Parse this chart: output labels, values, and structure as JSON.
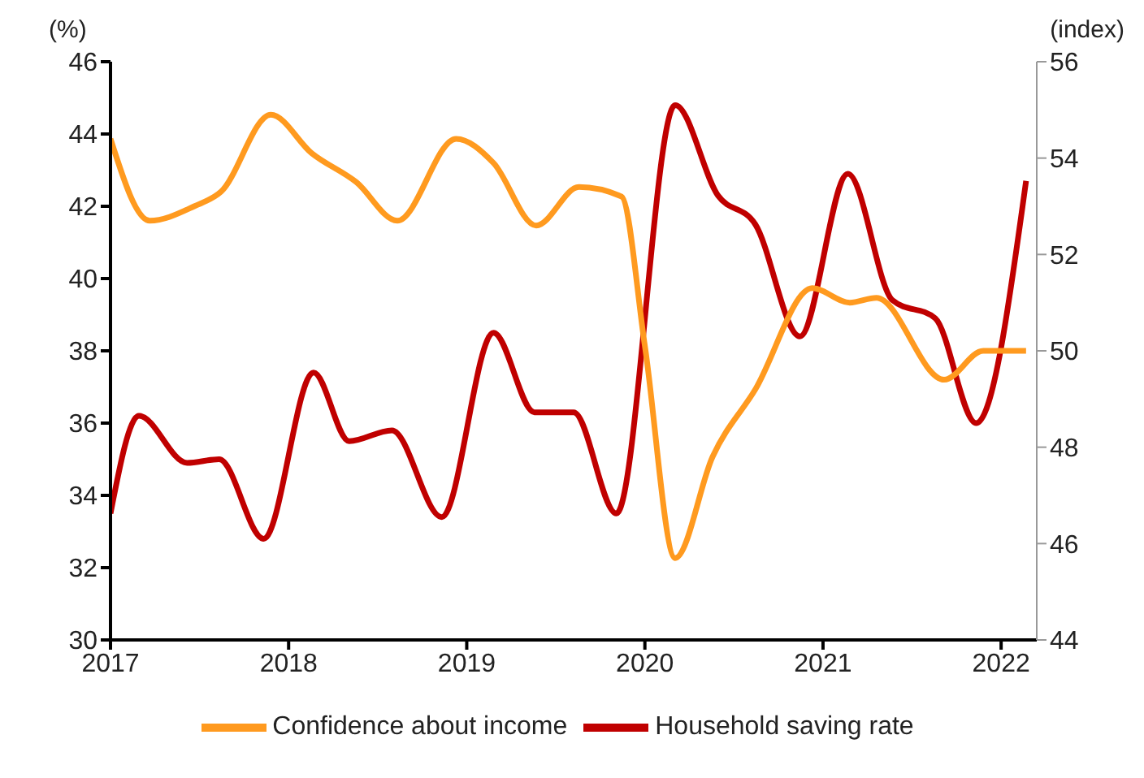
{
  "chart_data": {
    "type": "line",
    "ylabel": "(%)",
    "y2label": "(index)",
    "xlim": [
      2017,
      2022.2
    ],
    "xticks": [
      2017,
      2018,
      2019,
      2020,
      2021,
      2022
    ],
    "ylim": [
      30,
      46
    ],
    "yticks": [
      30,
      32,
      34,
      36,
      38,
      40,
      42,
      44,
      46
    ],
    "y2lim": [
      44,
      56
    ],
    "y2ticks": [
      44,
      46,
      48,
      50,
      52,
      54,
      56
    ],
    "grid": false,
    "legend": "bottom",
    "marker": "none",
    "line_style": "solid",
    "series": [
      {
        "name": "Household saving rate",
        "color": "#c00000",
        "x": [
          2017.0,
          2017.16,
          2017.43,
          2017.61,
          2017.86,
          2018.14,
          2018.34,
          2018.58,
          2018.86,
          2019.15,
          2019.38,
          2019.6,
          2019.84,
          2020.17,
          2020.41,
          2020.62,
          2020.87,
          2021.14,
          2021.39,
          2021.63,
          2021.86,
          2022.14
        ],
        "values": [
          33.5,
          36.2,
          34.9,
          35.0,
          32.8,
          37.4,
          35.5,
          35.8,
          33.4,
          38.5,
          36.3,
          36.3,
          33.5,
          44.8,
          42.3,
          41.5,
          38.4,
          42.9,
          39.4,
          38.9,
          36.0,
          42.7
        ]
      },
      {
        "name": "Confidence about income",
        "color": "#ff9a1f",
        "axis": "y2",
        "x": [
          2017.0,
          2017.22,
          2017.47,
          2017.62,
          2017.9,
          2018.13,
          2018.38,
          2018.61,
          2018.94,
          2019.15,
          2019.39,
          2019.63,
          2019.87,
          2020.0,
          2020.17,
          2020.38,
          2020.62,
          2020.94,
          2021.15,
          2021.3,
          2021.68,
          2021.9,
          2022.14
        ],
        "values": [
          54.4,
          52.7,
          53.0,
          53.3,
          54.9,
          54.1,
          53.5,
          52.7,
          54.4,
          53.9,
          52.6,
          53.4,
          53.2,
          50.1,
          45.7,
          47.8,
          49.2,
          51.3,
          51.0,
          51.1,
          49.4,
          50.0,
          50.0
        ]
      }
    ]
  }
}
